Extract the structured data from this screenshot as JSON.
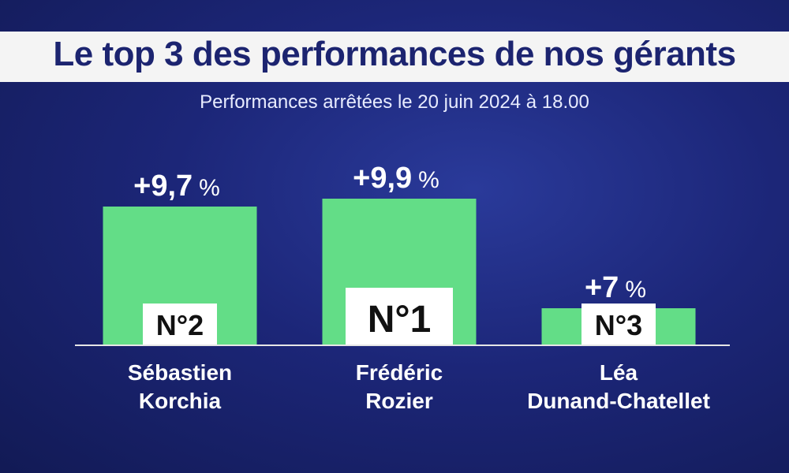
{
  "chart_data": {
    "type": "bar",
    "title": "Le top 3 des performances de nos gérants",
    "subtitle": "Performances arrêtées le 20 juin 2024 à 18.00",
    "unit": "%",
    "ylim": [
      0,
      10
    ],
    "grid": false,
    "bar_color": "#63dd87",
    "bars": [
      {
        "name_lines": [
          "Sébastien",
          "Korchia"
        ],
        "value": 9.7,
        "value_label": "+9,7",
        "rank_label": "N°2"
      },
      {
        "name_lines": [
          "Frédéric",
          "Rozier"
        ],
        "value": 9.9,
        "value_label": "+9,9",
        "rank_label": "N°1"
      },
      {
        "name_lines": [
          "Léa",
          "Dunand-Chatellet"
        ],
        "value": 7,
        "value_label": "+7",
        "rank_label": "N°3"
      }
    ]
  }
}
